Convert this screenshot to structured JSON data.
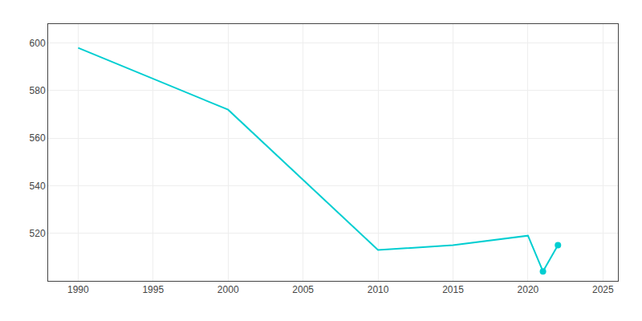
{
  "chart_data": {
    "type": "line",
    "x": [
      1990,
      2000,
      2010,
      2015,
      2020,
      2021,
      2022
    ],
    "series": [
      {
        "values": [
          598,
          572,
          513,
          515,
          519,
          504,
          515
        ],
        "color": "#00CED1",
        "line_style": "solid",
        "marker": "none"
      },
      {
        "values": [
          null,
          null,
          null,
          null,
          null,
          504,
          515
        ],
        "color": "#00CED1",
        "line_style": "none",
        "marker": "circle"
      }
    ],
    "xlim": [
      1988,
      2026
    ],
    "xticks": [
      1990,
      1995,
      2000,
      2005,
      2010,
      2015,
      2020,
      2025
    ],
    "ylim": [
      500,
      608
    ],
    "yticks": [
      520,
      540,
      560,
      580,
      600
    ],
    "grid": true
  }
}
